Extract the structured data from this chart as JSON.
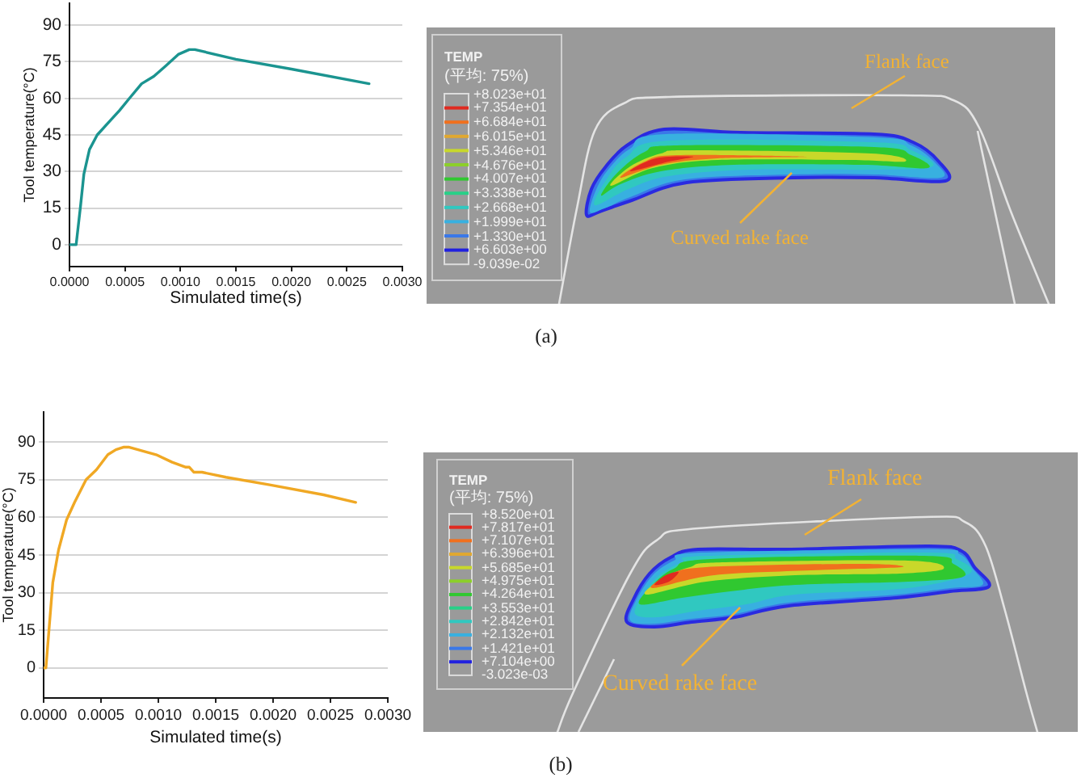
{
  "chart_data": [
    {
      "type": "line",
      "xlabel": "Simulated time(s)",
      "ylabel": "Tool temperature(°C)",
      "x": [
        0,
        6e-05,
        0.0001,
        0.00013,
        0.00018,
        0.00025,
        0.00035,
        0.00045,
        0.00054,
        0.00065,
        0.00076,
        0.00086,
        0.00098,
        0.00108,
        0.00113,
        0.0015,
        0.002,
        0.0027
      ],
      "values": [
        0,
        0,
        16,
        29,
        39,
        45,
        50,
        55,
        60,
        66,
        69,
        73,
        78,
        80,
        80,
        76,
        72,
        66
      ],
      "color": "#1b9490",
      "xlim": [
        0,
        0.003
      ],
      "ylim": [
        -9,
        99
      ],
      "xticks": [
        {
          "value": 0,
          "label": "0.0000"
        },
        0.0005,
        {
          "value": 0.001,
          "label": "0.0010"
        },
        0.0015,
        {
          "value": 0.002,
          "label": "0.0020"
        },
        0.0025,
        {
          "value": 0.003,
          "label": "0.0030"
        }
      ],
      "yticks": [
        0,
        15,
        30,
        45,
        60,
        75,
        90
      ],
      "grid": "y",
      "marker": "none",
      "annotations": [
        "(a)"
      ]
    },
    {
      "type": "other",
      "title": "TEMP",
      "subtitle": "(平均: 75%)",
      "annotations": [
        "+8.023e+01",
        "+7.354e+01",
        "+6.684e+01",
        "+6.015e+01",
        "+5.346e+01",
        "+4.676e+01",
        "+4.007e+01",
        "+3.338e+01",
        "+2.668e+01",
        "+1.999e+01",
        "+1.330e+01",
        "+6.603e+00",
        "-9.039e-02",
        "Flank face",
        "Curved rake face"
      ]
    },
    {
      "type": "line",
      "xlabel": "Simulated time(s)",
      "ylabel": "Tool temperature(°C)",
      "x": [
        0,
        2e-05,
        5e-05,
        8e-05,
        0.00013,
        0.0002,
        0.00027,
        0.00037,
        0.00046,
        0.00056,
        0.00063,
        0.0007,
        0.00074,
        0.00098,
        0.00112,
        0.00124,
        0.00127,
        0.00131,
        0.00138,
        0.00159,
        0.00197,
        0.00244,
        0.00272
      ],
      "values": [
        0,
        0,
        17,
        34,
        47,
        59,
        66,
        75,
        79,
        85,
        87,
        88,
        88,
        85,
        82,
        80,
        80,
        78,
        78,
        76,
        73,
        69,
        66
      ],
      "color": "#f0a824",
      "xlim": [
        0,
        0.003
      ],
      "ylim": [
        -12,
        102
      ],
      "xticks": [
        {
          "value": 0,
          "label": "0.0000"
        },
        0.0005,
        {
          "value": 0.001,
          "label": "0.0010"
        },
        0.0015,
        {
          "value": 0.002,
          "label": "0.0020"
        },
        0.0025,
        {
          "value": 0.003,
          "label": "0.0030"
        }
      ],
      "yticks": [
        0,
        15,
        30,
        45,
        60,
        75,
        90
      ],
      "grid": "y",
      "marker": "none",
      "annotations": [
        "(b)"
      ]
    },
    {
      "type": "other",
      "title": "TEMP",
      "subtitle": "(平均: 75%)",
      "annotations": [
        "+8.520e+01",
        "+7.817e+01",
        "+7.107e+01",
        "+6.396e+01",
        "+5.685e+01",
        "+4.975e+01",
        "+4.264e+01",
        "+3.553e+01",
        "+2.842e+01",
        "+2.132e+01",
        "+1.421e+01",
        "+7.104e+00",
        "-3.023e-03",
        "Flank face",
        "Curved rake face"
      ]
    }
  ]
}
